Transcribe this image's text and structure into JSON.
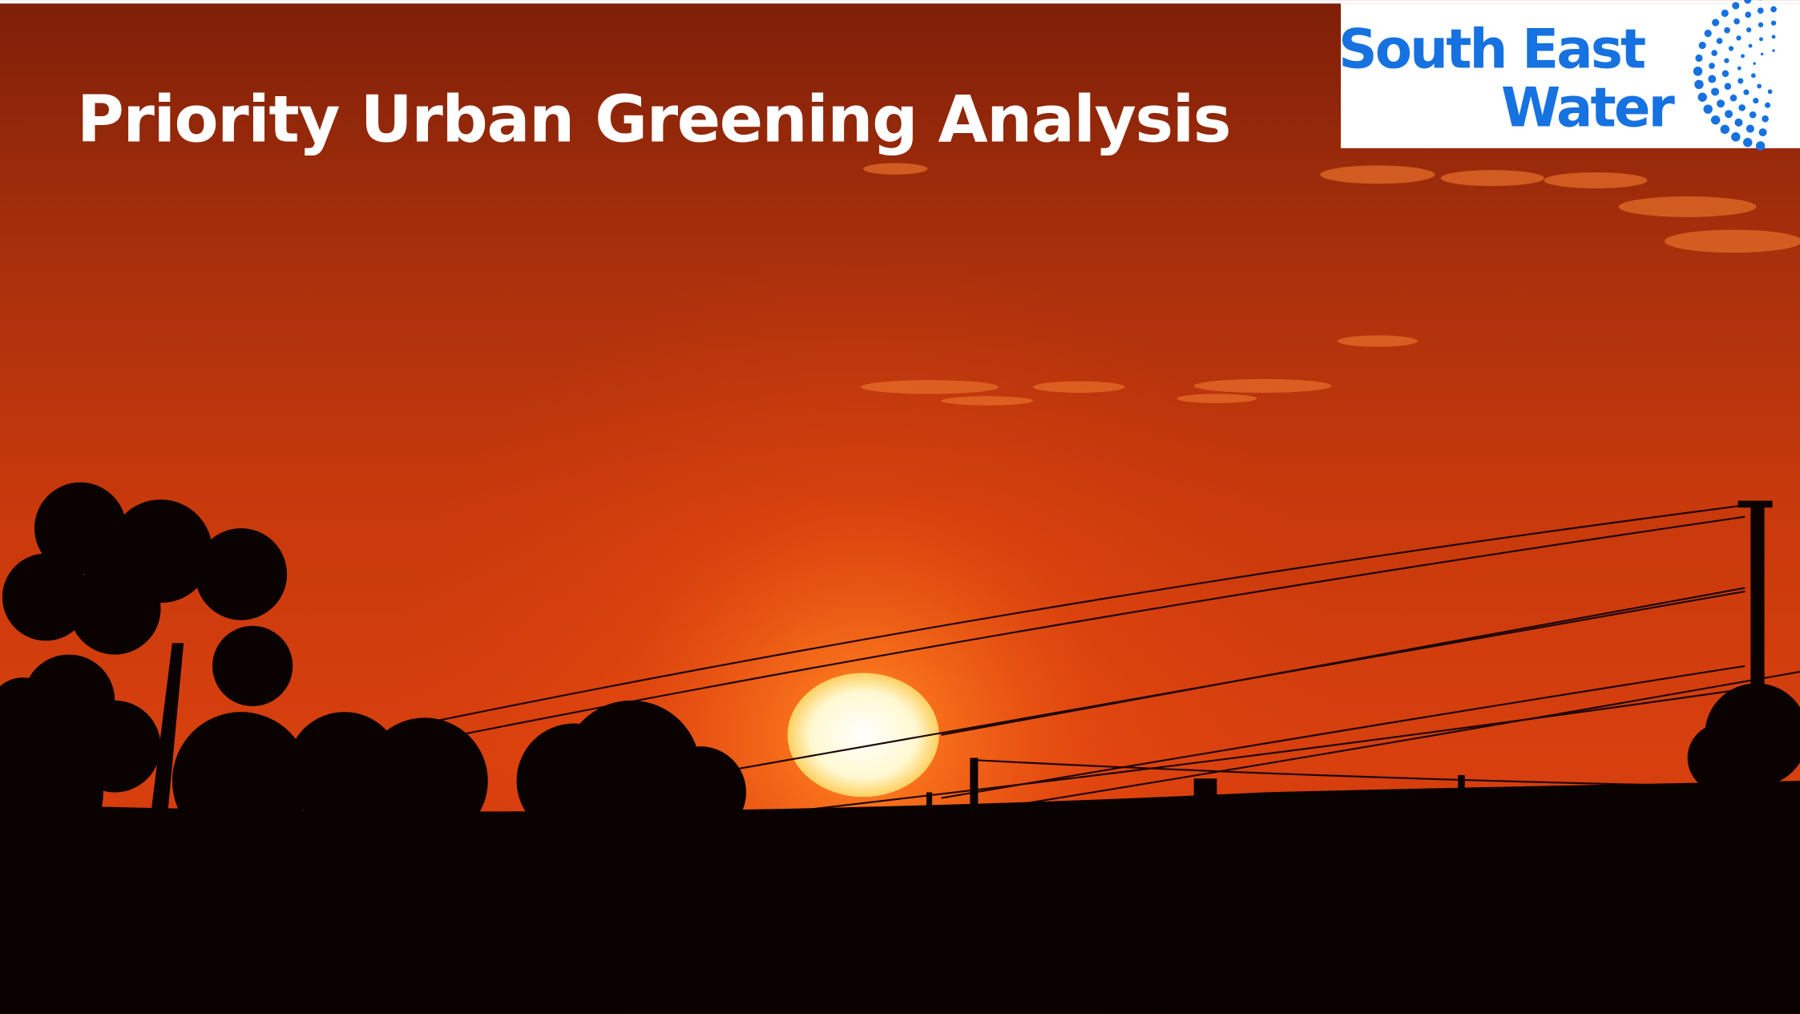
{
  "slide": {
    "title": "Priority Urban Greening Analysis",
    "logo": {
      "line1": "South East",
      "line2": "Water"
    }
  }
}
